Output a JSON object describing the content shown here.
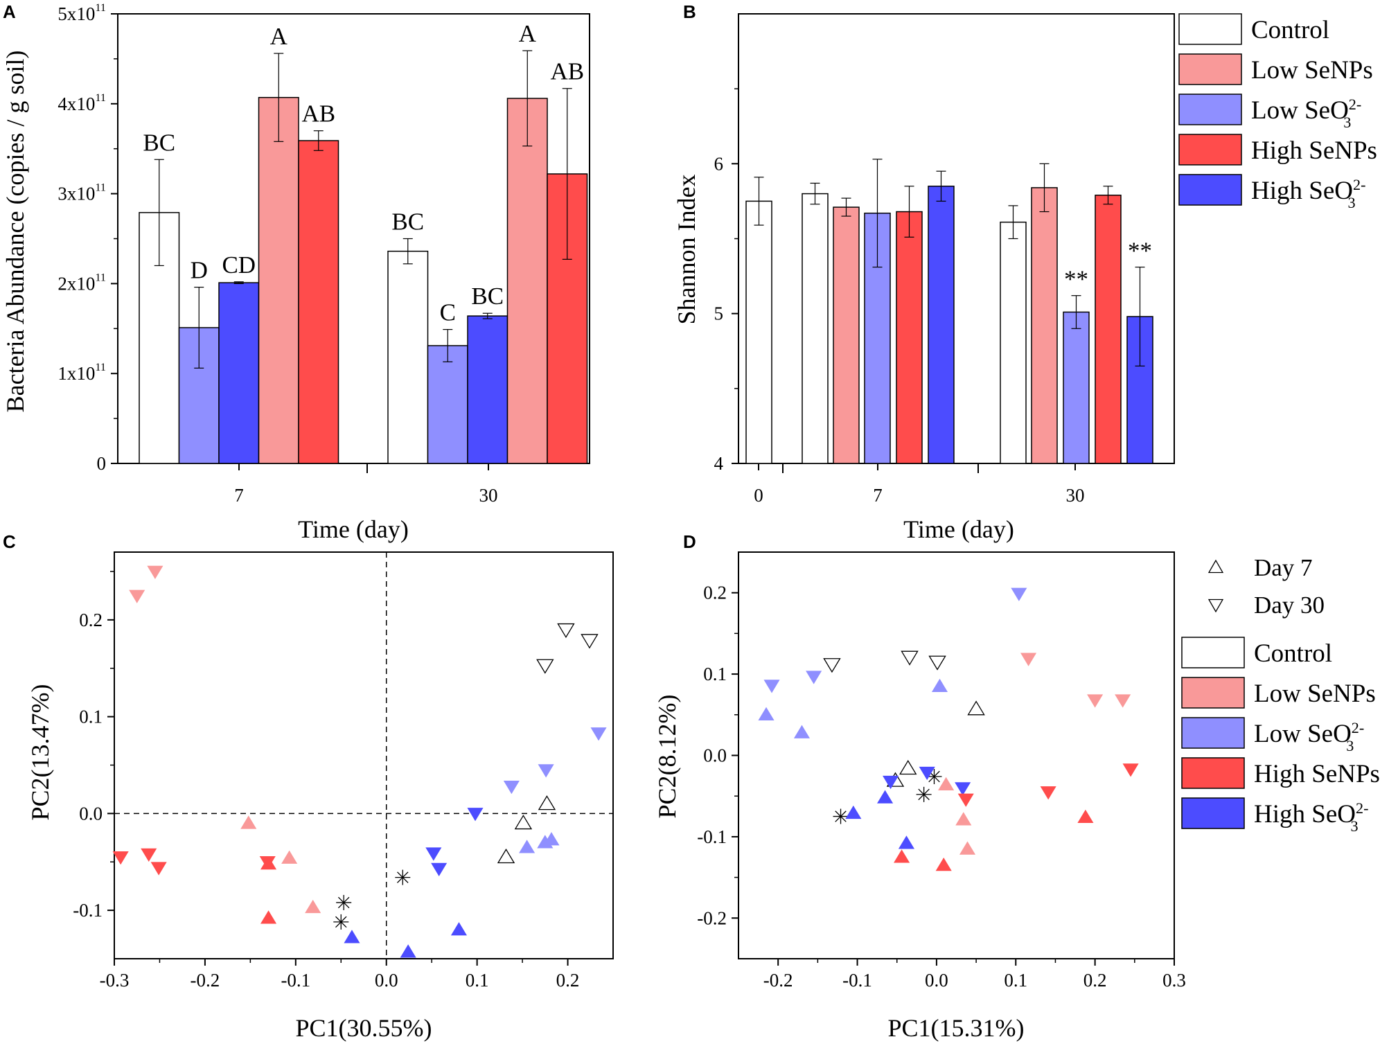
{
  "colors": {
    "control": "#ffffff",
    "low_senps": "#f99999",
    "low_seo3": "#8f8fff",
    "high_senps": "#ff4c4c",
    "high_seo3": "#4c4cff",
    "outline": "#000000"
  },
  "panels": {
    "A": {
      "label": "A"
    },
    "B": {
      "label": "B"
    },
    "C": {
      "label": "C"
    },
    "D": {
      "label": "D"
    }
  },
  "legend_main": {
    "items": [
      {
        "key": "control",
        "text": "Control"
      },
      {
        "key": "low_senps",
        "text": "Low SeNPs"
      },
      {
        "key": "low_seo3",
        "text": "Low SeO",
        "sub": "3",
        "sup": "2-"
      },
      {
        "key": "high_senps",
        "text": "High SeNPs"
      },
      {
        "key": "high_seo3",
        "text": "High SeO",
        "sub": "3",
        "sup": "2-"
      }
    ]
  },
  "legend_markers": {
    "items": [
      {
        "marker": "triangle-up",
        "text": "Day 7"
      },
      {
        "marker": "triangle-down",
        "text": "Day 30"
      }
    ]
  },
  "chart_data": [
    {
      "panel": "A",
      "type": "bar",
      "xlabel": "Time (day)",
      "ylabel": "Bacteria Abundance (copies / g soil)",
      "categories": [
        "7",
        "30"
      ],
      "ylim": [
        0,
        500000000000.0
      ],
      "yticks": [
        0,
        100000000000.0,
        200000000000.0,
        300000000000.0,
        400000000000.0,
        500000000000.0
      ],
      "ytick_labels": [
        {
          "text": "0"
        },
        {
          "text": "1x10",
          "sup": "11"
        },
        {
          "text": "2x10",
          "sup": "11"
        },
        {
          "text": "3x10",
          "sup": "11"
        },
        {
          "text": "4x10",
          "sup": "11"
        },
        {
          "text": "5x10",
          "sup": "11"
        }
      ],
      "series": [
        {
          "name": "Control",
          "key": "control",
          "values": [
            279000000000.0,
            236000000000.0
          ],
          "errors": [
            59000000000.0,
            14000000000.0
          ],
          "labels": [
            "BC",
            "BC"
          ]
        },
        {
          "name": "Low SeO3 2-",
          "key": "low_seo3",
          "values": [
            151000000000.0,
            131000000000.0
          ],
          "errors": [
            45000000000.0,
            18000000000.0
          ],
          "labels": [
            "D",
            "C"
          ]
        },
        {
          "name": "High SeO3 2-",
          "key": "high_seo3",
          "values": [
            201000000000.0,
            164000000000.0
          ],
          "errors": [
            1000000000.0,
            3000000000.0
          ],
          "labels": [
            "CD",
            "BC"
          ]
        },
        {
          "name": "Low SeNPs",
          "key": "low_senps",
          "values": [
            407000000000.0,
            406000000000.0
          ],
          "errors": [
            49000000000.0,
            53000000000.0
          ],
          "labels": [
            "A",
            "A"
          ]
        },
        {
          "name": "High SeNPs",
          "key": "high_senps",
          "values": [
            359000000000.0,
            322000000000.0
          ],
          "errors": [
            11000000000.0,
            95000000000.0
          ],
          "labels": [
            "AB",
            "AB"
          ]
        }
      ]
    },
    {
      "panel": "B",
      "type": "bar",
      "xlabel": "Time (day)",
      "ylabel": "Shannon Index",
      "categories": [
        "0",
        "7",
        "30"
      ],
      "ylim": [
        4,
        7
      ],
      "yticks": [
        4,
        5,
        6
      ],
      "ytick_labels": [
        {
          "text": "4"
        },
        {
          "text": "5"
        },
        {
          "text": "6"
        }
      ],
      "bars": [
        {
          "group": "0",
          "key": "control",
          "value": 5.75,
          "error": 0.16,
          "label": ""
        },
        {
          "group": "7",
          "key": "control",
          "value": 5.8,
          "error": 0.07,
          "label": ""
        },
        {
          "group": "7",
          "key": "low_senps",
          "value": 5.71,
          "error": 0.06,
          "label": ""
        },
        {
          "group": "7",
          "key": "low_seo3",
          "value": 5.67,
          "error": 0.36,
          "label": ""
        },
        {
          "group": "7",
          "key": "high_senps",
          "value": 5.68,
          "error": 0.17,
          "label": ""
        },
        {
          "group": "7",
          "key": "high_seo3",
          "value": 5.85,
          "error": 0.1,
          "label": ""
        },
        {
          "group": "30",
          "key": "control",
          "value": 5.61,
          "error": 0.11,
          "label": ""
        },
        {
          "group": "30",
          "key": "low_senps",
          "value": 5.84,
          "error": 0.16,
          "label": ""
        },
        {
          "group": "30",
          "key": "low_seo3",
          "value": 5.01,
          "error": 0.11,
          "label": "**"
        },
        {
          "group": "30",
          "key": "high_senps",
          "value": 5.79,
          "error": 0.06,
          "label": ""
        },
        {
          "group": "30",
          "key": "high_seo3",
          "value": 4.98,
          "error": 0.33,
          "label": "**"
        }
      ]
    },
    {
      "panel": "C",
      "type": "scatter",
      "xlabel": "PC1(30.55%)",
      "ylabel": "PC2(13.47%)",
      "xlim": [
        -0.3,
        0.25
      ],
      "ylim": [
        -0.15,
        0.27
      ],
      "xticks": [
        -0.3,
        -0.2,
        -0.1,
        0.0,
        0.1,
        0.2
      ],
      "xtick_labels": [
        "-0.3",
        "-0.2",
        "-0.1",
        "0.0",
        "0.1",
        "0.2"
      ],
      "yticks": [
        -0.1,
        0.0,
        0.1,
        0.2
      ],
      "ytick_labels": [
        "-0.1",
        "0.0",
        "0.1",
        "0.2"
      ],
      "reference_lines": {
        "x": 0,
        "y": 0
      },
      "points": [
        {
          "x": -0.275,
          "y": 0.225,
          "group": "low_senps",
          "marker": "down"
        },
        {
          "x": -0.255,
          "y": 0.25,
          "group": "low_senps",
          "marker": "down"
        },
        {
          "x": -0.152,
          "y": -0.01,
          "group": "low_senps",
          "marker": "up"
        },
        {
          "x": -0.107,
          "y": -0.046,
          "group": "low_senps",
          "marker": "up"
        },
        {
          "x": -0.081,
          "y": -0.097,
          "group": "low_senps",
          "marker": "up"
        },
        {
          "x": -0.293,
          "y": -0.045,
          "group": "high_senps",
          "marker": "down"
        },
        {
          "x": -0.262,
          "y": -0.042,
          "group": "high_senps",
          "marker": "down"
        },
        {
          "x": -0.251,
          "y": -0.056,
          "group": "high_senps",
          "marker": "down"
        },
        {
          "x": -0.131,
          "y": -0.05,
          "group": "high_senps",
          "marker": "down"
        },
        {
          "x": -0.13,
          "y": -0.052,
          "group": "high_senps",
          "marker": "up"
        },
        {
          "x": -0.13,
          "y": -0.108,
          "group": "high_senps",
          "marker": "up"
        },
        {
          "x": 0.175,
          "y": 0.153,
          "group": "control",
          "marker": "down"
        },
        {
          "x": 0.198,
          "y": 0.19,
          "group": "control",
          "marker": "down"
        },
        {
          "x": 0.224,
          "y": 0.179,
          "group": "control",
          "marker": "down"
        },
        {
          "x": 0.132,
          "y": -0.045,
          "group": "control",
          "marker": "up"
        },
        {
          "x": 0.151,
          "y": -0.01,
          "group": "control",
          "marker": "up"
        },
        {
          "x": 0.177,
          "y": 0.01,
          "group": "control",
          "marker": "up"
        },
        {
          "x": -0.047,
          "y": -0.092,
          "group": "control",
          "marker": "star"
        },
        {
          "x": -0.05,
          "y": -0.112,
          "group": "control",
          "marker": "star"
        },
        {
          "x": 0.018,
          "y": -0.066,
          "group": "control",
          "marker": "star"
        },
        {
          "x": 0.138,
          "y": 0.028,
          "group": "low_seo3",
          "marker": "down"
        },
        {
          "x": 0.176,
          "y": 0.045,
          "group": "low_seo3",
          "marker": "down"
        },
        {
          "x": 0.234,
          "y": 0.083,
          "group": "low_seo3",
          "marker": "down"
        },
        {
          "x": 0.155,
          "y": -0.035,
          "group": "low_seo3",
          "marker": "up"
        },
        {
          "x": 0.175,
          "y": -0.03,
          "group": "low_seo3",
          "marker": "up"
        },
        {
          "x": 0.182,
          "y": -0.027,
          "group": "low_seo3",
          "marker": "up"
        },
        {
          "x": 0.098,
          "y": 0.0,
          "group": "high_seo3",
          "marker": "down"
        },
        {
          "x": 0.052,
          "y": -0.041,
          "group": "high_seo3",
          "marker": "down"
        },
        {
          "x": 0.058,
          "y": -0.057,
          "group": "high_seo3",
          "marker": "down"
        },
        {
          "x": -0.038,
          "y": -0.128,
          "group": "high_seo3",
          "marker": "up"
        },
        {
          "x": 0.024,
          "y": -0.143,
          "group": "high_seo3",
          "marker": "up"
        },
        {
          "x": 0.08,
          "y": -0.12,
          "group": "high_seo3",
          "marker": "up"
        }
      ]
    },
    {
      "panel": "D",
      "type": "scatter",
      "xlabel": "PC1(15.31%)",
      "ylabel": "PC2(8.12%)",
      "xlim": [
        -0.25,
        0.3
      ],
      "ylim": [
        -0.25,
        0.25
      ],
      "xticks": [
        -0.2,
        -0.1,
        0.0,
        0.1,
        0.2,
        0.3
      ],
      "xtick_labels": [
        "-0.2",
        "-0.1",
        "0.0",
        "0.1",
        "0.2",
        "0.3"
      ],
      "yticks": [
        -0.2,
        -0.1,
        0.0,
        0.1,
        0.2
      ],
      "ytick_labels": [
        "-0.2",
        "-0.1",
        "0.0",
        "0.1",
        "0.2"
      ],
      "points": [
        {
          "x": -0.132,
          "y": 0.112,
          "group": "control",
          "marker": "down"
        },
        {
          "x": -0.034,
          "y": 0.121,
          "group": "control",
          "marker": "down"
        },
        {
          "x": 0.001,
          "y": 0.115,
          "group": "control",
          "marker": "down"
        },
        {
          "x": 0.05,
          "y": 0.057,
          "group": "control",
          "marker": "up"
        },
        {
          "x": -0.036,
          "y": -0.016,
          "group": "control",
          "marker": "up"
        },
        {
          "x": -0.052,
          "y": -0.031,
          "group": "control",
          "marker": "up"
        },
        {
          "x": -0.121,
          "y": -0.075,
          "group": "control",
          "marker": "star"
        },
        {
          "x": -0.016,
          "y": -0.048,
          "group": "control",
          "marker": "star"
        },
        {
          "x": -0.003,
          "y": -0.026,
          "group": "control",
          "marker": "star"
        },
        {
          "x": -0.208,
          "y": 0.086,
          "group": "low_seo3",
          "marker": "down"
        },
        {
          "x": -0.155,
          "y": 0.097,
          "group": "low_seo3",
          "marker": "down"
        },
        {
          "x": 0.104,
          "y": 0.199,
          "group": "low_seo3",
          "marker": "down"
        },
        {
          "x": -0.215,
          "y": 0.05,
          "group": "low_seo3",
          "marker": "up"
        },
        {
          "x": -0.17,
          "y": 0.028,
          "group": "low_seo3",
          "marker": "up"
        },
        {
          "x": 0.004,
          "y": 0.085,
          "group": "low_seo3",
          "marker": "up"
        },
        {
          "x": -0.058,
          "y": -0.032,
          "group": "high_seo3",
          "marker": "down"
        },
        {
          "x": -0.012,
          "y": -0.021,
          "group": "high_seo3",
          "marker": "down"
        },
        {
          "x": 0.033,
          "y": -0.04,
          "group": "high_seo3",
          "marker": "down"
        },
        {
          "x": -0.105,
          "y": -0.071,
          "group": "high_seo3",
          "marker": "up"
        },
        {
          "x": -0.065,
          "y": -0.052,
          "group": "high_seo3",
          "marker": "up"
        },
        {
          "x": -0.038,
          "y": -0.108,
          "group": "high_seo3",
          "marker": "up"
        },
        {
          "x": 0.116,
          "y": 0.119,
          "group": "low_senps",
          "marker": "down"
        },
        {
          "x": 0.2,
          "y": 0.068,
          "group": "low_senps",
          "marker": "down"
        },
        {
          "x": 0.235,
          "y": 0.068,
          "group": "low_senps",
          "marker": "down"
        },
        {
          "x": 0.012,
          "y": -0.036,
          "group": "low_senps",
          "marker": "up"
        },
        {
          "x": 0.034,
          "y": -0.079,
          "group": "low_senps",
          "marker": "up"
        },
        {
          "x": 0.039,
          "y": -0.115,
          "group": "low_senps",
          "marker": "up"
        },
        {
          "x": 0.037,
          "y": -0.054,
          "group": "high_senps",
          "marker": "down"
        },
        {
          "x": 0.141,
          "y": -0.045,
          "group": "high_senps",
          "marker": "down"
        },
        {
          "x": 0.245,
          "y": -0.017,
          "group": "high_senps",
          "marker": "down"
        },
        {
          "x": -0.044,
          "y": -0.125,
          "group": "high_senps",
          "marker": "up"
        },
        {
          "x": 0.009,
          "y": -0.135,
          "group": "high_senps",
          "marker": "up"
        },
        {
          "x": 0.188,
          "y": -0.076,
          "group": "high_senps",
          "marker": "up"
        }
      ]
    }
  ]
}
